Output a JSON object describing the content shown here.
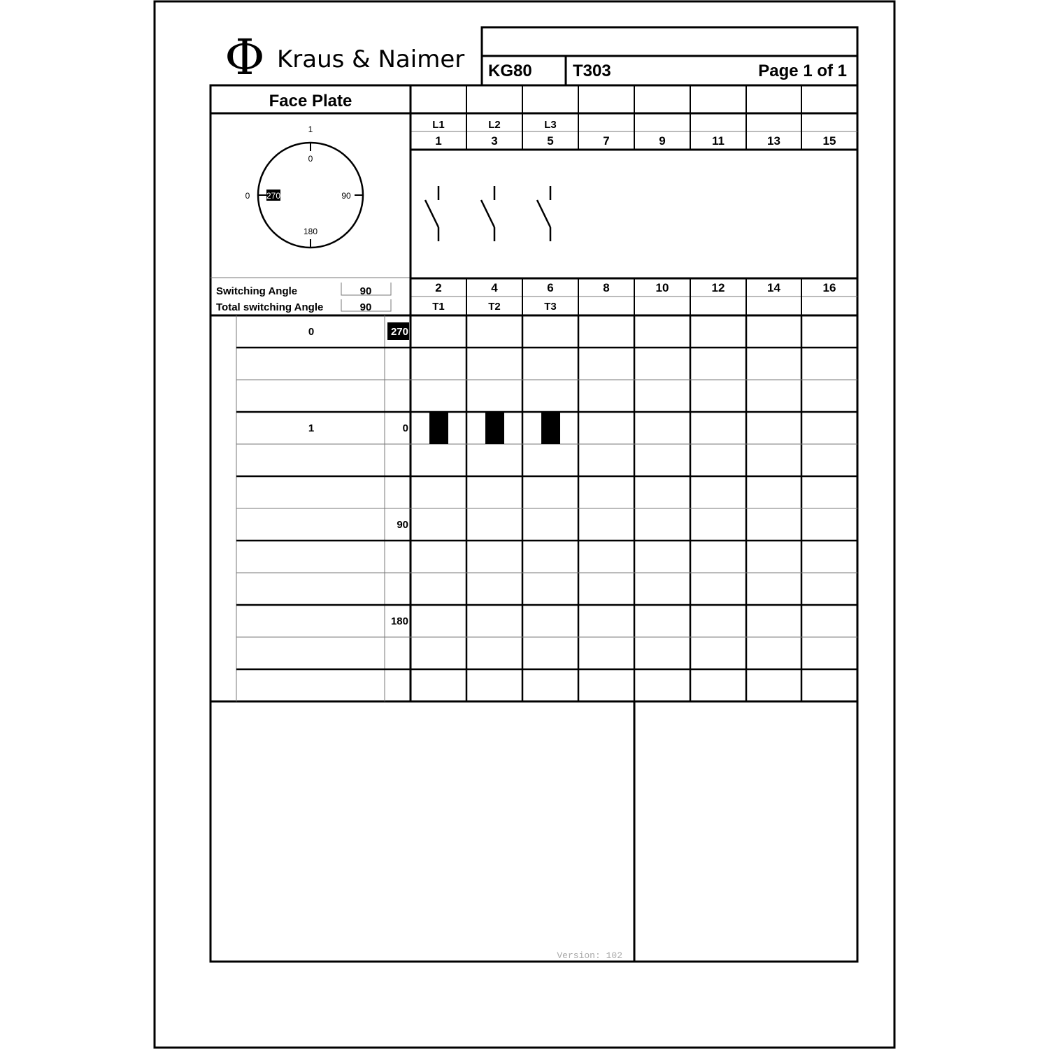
{
  "header": {
    "brand_symbol": "Φ",
    "brand_name": "Kraus & Naimer",
    "model": "KG80",
    "code": "T303",
    "page": "Page 1 of 1"
  },
  "face_plate": {
    "title": "Face Plate",
    "dial": {
      "outer_top": "1",
      "outer_left": "0",
      "inner_top": "0",
      "inner_left": "270",
      "inner_right": "90",
      "inner_bottom": "180"
    },
    "switching_angle_label": "Switching Angle",
    "switching_angle": "90",
    "total_switching_angle_label": "Total switching Angle",
    "total_switching_angle": "90"
  },
  "terminals": {
    "line_labels": [
      "L1",
      "L2",
      "L3",
      "",
      "",
      "",
      "",
      ""
    ],
    "top": [
      "1",
      "3",
      "5",
      "7",
      "9",
      "11",
      "13",
      "15"
    ],
    "bottom": [
      "2",
      "4",
      "6",
      "8",
      "10",
      "12",
      "14",
      "16"
    ],
    "load_labels": [
      "T1",
      "T2",
      "T3",
      "",
      "",
      "",
      "",
      ""
    ]
  },
  "positions": [
    {
      "label": "0",
      "angle": "270",
      "angle_highlight": true,
      "contacts_closed": [
        false,
        false,
        false,
        false,
        false,
        false,
        false,
        false
      ]
    },
    {
      "label": "",
      "angle": "",
      "contacts_closed": [
        false,
        false,
        false,
        false,
        false,
        false,
        false,
        false
      ]
    },
    {
      "label": "",
      "angle": "",
      "contacts_closed": [
        false,
        false,
        false,
        false,
        false,
        false,
        false,
        false
      ]
    },
    {
      "label": "1",
      "angle": "0",
      "contacts_closed": [
        true,
        true,
        true,
        false,
        false,
        false,
        false,
        false
      ]
    },
    {
      "label": "",
      "angle": "",
      "contacts_closed": [
        false,
        false,
        false,
        false,
        false,
        false,
        false,
        false
      ]
    },
    {
      "label": "",
      "angle": "",
      "contacts_closed": [
        false,
        false,
        false,
        false,
        false,
        false,
        false,
        false
      ]
    },
    {
      "label": "",
      "angle": "90",
      "contacts_closed": [
        false,
        false,
        false,
        false,
        false,
        false,
        false,
        false
      ]
    },
    {
      "label": "",
      "angle": "",
      "contacts_closed": [
        false,
        false,
        false,
        false,
        false,
        false,
        false,
        false
      ]
    },
    {
      "label": "",
      "angle": "",
      "contacts_closed": [
        false,
        false,
        false,
        false,
        false,
        false,
        false,
        false
      ]
    },
    {
      "label": "",
      "angle": "180",
      "contacts_closed": [
        false,
        false,
        false,
        false,
        false,
        false,
        false,
        false
      ]
    },
    {
      "label": "",
      "angle": "",
      "contacts_closed": [
        false,
        false,
        false,
        false,
        false,
        false,
        false,
        false
      ]
    },
    {
      "label": "",
      "angle": "",
      "contacts_closed": [
        false,
        false,
        false,
        false,
        false,
        false,
        false,
        false
      ]
    }
  ],
  "footer": {
    "version": "Version: 102"
  }
}
